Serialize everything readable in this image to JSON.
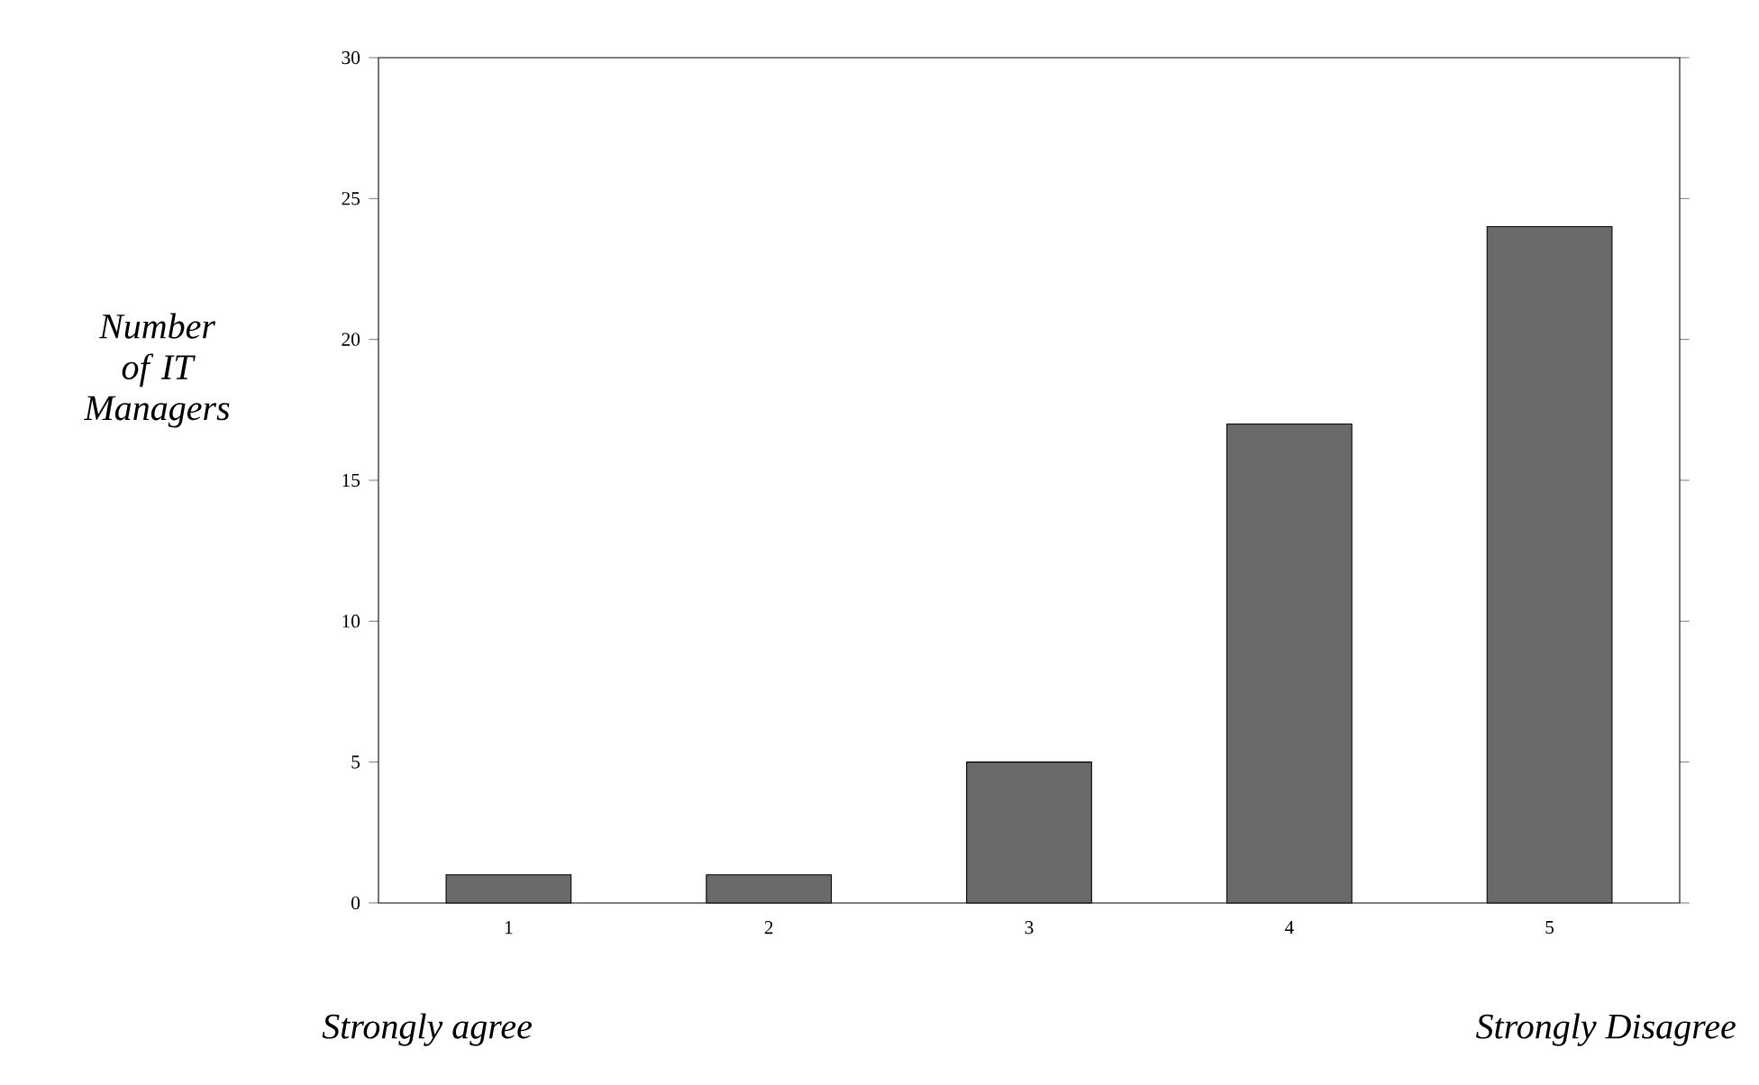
{
  "chart_data": {
    "type": "bar",
    "ylabel": "Number of IT Managers",
    "categories": [
      "1",
      "2",
      "3",
      "4",
      "5"
    ],
    "values": [
      1,
      1,
      5,
      17,
      24
    ],
    "color": "#6a6a6a",
    "ylim": [
      0,
      30
    ],
    "yticks": [
      0,
      5,
      10,
      15,
      20,
      25,
      30
    ],
    "annotations": [
      "Strongly agree",
      "Strongly Disagree"
    ]
  }
}
